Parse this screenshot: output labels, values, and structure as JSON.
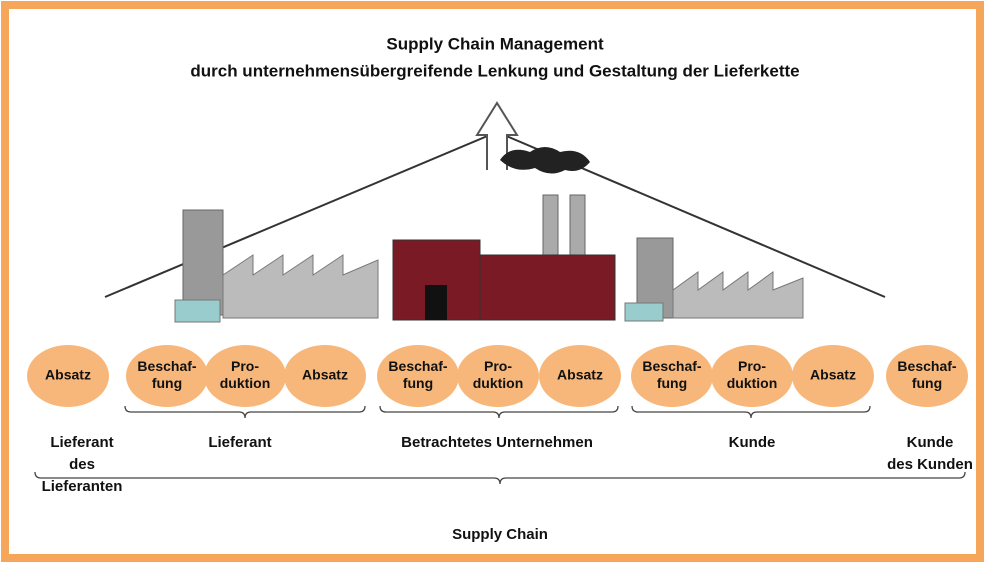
{
  "header": {
    "title": [
      "Supply Chain Management",
      "durch unternehmensübergreifende Lenkung und Gestaltung der Lieferkette"
    ]
  },
  "stages": [
    {
      "lines": [
        "Absatz"
      ]
    },
    {
      "lines": [
        "Beschaf-",
        "fung"
      ]
    },
    {
      "lines": [
        "Pro-",
        "duktion"
      ]
    },
    {
      "lines": [
        "Absatz"
      ]
    },
    {
      "lines": [
        "Beschaf-",
        "fung"
      ]
    },
    {
      "lines": [
        "Pro-",
        "duktion"
      ]
    },
    {
      "lines": [
        "Absatz"
      ]
    },
    {
      "lines": [
        "Beschaf-",
        "fung"
      ]
    },
    {
      "lines": [
        "Pro-",
        "duktion"
      ]
    },
    {
      "lines": [
        "Absatz"
      ]
    },
    {
      "lines": [
        "Beschaf-",
        "fung"
      ]
    }
  ],
  "groups": [
    {
      "lines": [
        "Lieferant",
        "des",
        "Lieferanten"
      ]
    },
    {
      "lines": [
        "Lieferant"
      ]
    },
    {
      "lines": [
        "Betrachtetes Unternehmen"
      ]
    },
    {
      "lines": [
        "Kunde"
      ]
    },
    {
      "lines": [
        "Kunde",
        "des Kunden"
      ]
    }
  ],
  "footer": "Supply Chain"
}
